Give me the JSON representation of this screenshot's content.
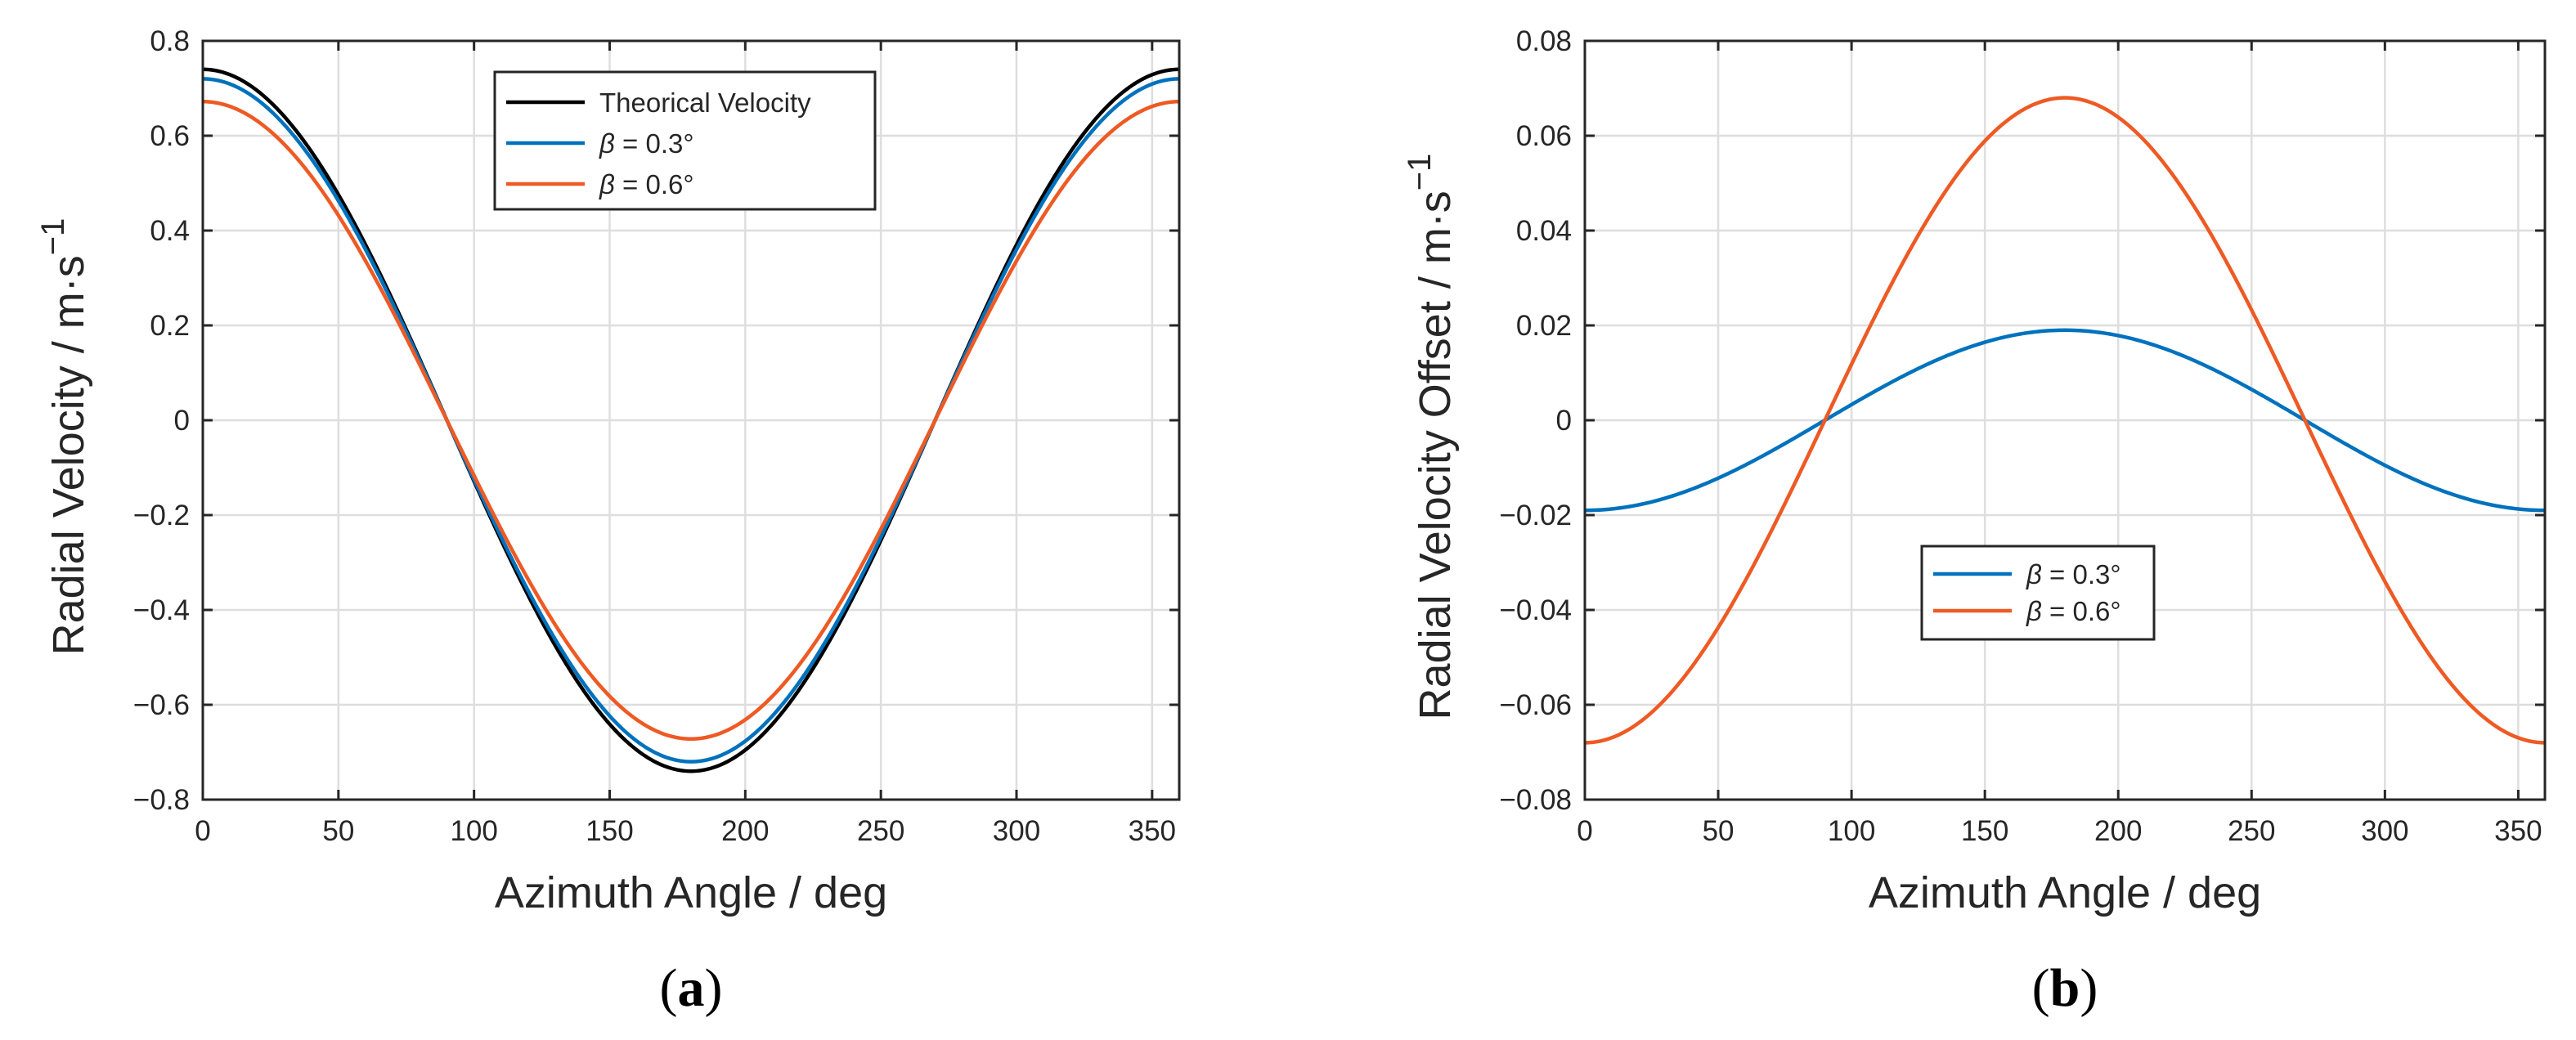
{
  "charts": [
    {
      "panel_label": "(a)",
      "panel_letter": "a",
      "xlabel": "Azimuth Angle / deg",
      "ylabel": "Radial Velocity / m·s",
      "ylabel_superscript": "−1",
      "legend_position": "top-center"
    },
    {
      "panel_label": "(b)",
      "panel_letter": "b",
      "xlabel": "Azimuth Angle / deg",
      "ylabel": "Radial Velocity Offset / m·s",
      "ylabel_superscript": "−1",
      "legend_position": "center"
    }
  ],
  "chart_data": [
    {
      "type": "line",
      "title": "",
      "xlabel": "Azimuth Angle / deg",
      "ylabel": "Radial Velocity / m·s−1",
      "xlim": [
        0,
        360
      ],
      "ylim": [
        -0.8,
        0.8
      ],
      "xticks": [
        0,
        50,
        100,
        150,
        200,
        250,
        300,
        350
      ],
      "yticks": [
        -0.8,
        -0.6,
        -0.4,
        -0.2,
        0,
        0.2,
        0.4,
        0.6,
        0.8
      ],
      "ytick_labels": [
        "−0.8",
        "−0.6",
        "−0.4",
        "−0.2",
        "0",
        "0.2",
        "0.4",
        "0.6",
        "0.8"
      ],
      "grid": true,
      "x": [
        0,
        20,
        40,
        60,
        80,
        90,
        100,
        120,
        140,
        160,
        180,
        200,
        220,
        240,
        260,
        270,
        280,
        300,
        320,
        340,
        360
      ],
      "series": [
        {
          "name": "Theorical Velocity",
          "legend_prefix": "",
          "legend_value": "Theorical Velocity",
          "color": "#000000",
          "amplitude": 0.74,
          "values": [
            0.74,
            0.695,
            0.567,
            0.37,
            0.128,
            0.0,
            -0.128,
            -0.37,
            -0.567,
            -0.695,
            -0.74,
            -0.695,
            -0.567,
            -0.37,
            -0.128,
            0.0,
            0.128,
            0.37,
            0.567,
            0.695,
            0.74
          ]
        },
        {
          "name": "β = 0.3°",
          "legend_prefix": "β",
          "legend_value": " = 0.3°",
          "color": "#0072BD",
          "amplitude": 0.72,
          "values": [
            0.72,
            0.677,
            0.552,
            0.36,
            0.125,
            0.0,
            -0.125,
            -0.36,
            -0.552,
            -0.677,
            -0.72,
            -0.677,
            -0.552,
            -0.36,
            -0.125,
            0.0,
            0.125,
            0.36,
            0.552,
            0.677,
            0.72
          ]
        },
        {
          "name": "β = 0.6°",
          "legend_prefix": "β",
          "legend_value": " = 0.6°",
          "color": "#EE5A24",
          "amplitude": 0.672,
          "values": [
            0.672,
            0.631,
            0.515,
            0.336,
            0.117,
            0.0,
            -0.117,
            -0.336,
            -0.515,
            -0.631,
            -0.672,
            -0.631,
            -0.515,
            -0.336,
            -0.117,
            0.0,
            0.117,
            0.336,
            0.515,
            0.631,
            0.672
          ]
        }
      ]
    },
    {
      "type": "line",
      "title": "",
      "xlabel": "Azimuth Angle / deg",
      "ylabel": "Radial Velocity Offset / m·s−1",
      "xlim": [
        0,
        360
      ],
      "ylim": [
        -0.08,
        0.08
      ],
      "xticks": [
        0,
        50,
        100,
        150,
        200,
        250,
        300,
        350
      ],
      "yticks": [
        -0.08,
        -0.06,
        -0.04,
        -0.02,
        0,
        0.02,
        0.04,
        0.06,
        0.08
      ],
      "ytick_labels": [
        "−0.08",
        "−0.06",
        "−0.04",
        "−0.02",
        "0",
        "0.02",
        "0.04",
        "0.06",
        "0.08"
      ],
      "grid": true,
      "x": [
        0,
        20,
        40,
        60,
        80,
        90,
        100,
        120,
        140,
        160,
        180,
        200,
        220,
        240,
        260,
        270,
        280,
        300,
        320,
        340,
        360
      ],
      "series": [
        {
          "name": "β = 0.3°",
          "legend_prefix": "β",
          "legend_value": " = 0.3°",
          "color": "#0072BD",
          "amplitude": 0.019,
          "values": [
            -0.019,
            -0.0179,
            -0.0146,
            -0.0095,
            -0.0033,
            0.0,
            0.0033,
            0.0095,
            0.0146,
            0.0179,
            0.019,
            0.0179,
            0.0146,
            0.0095,
            0.0033,
            0.0,
            -0.0033,
            -0.0095,
            -0.0146,
            -0.0179,
            -0.019
          ]
        },
        {
          "name": "β = 0.6°",
          "legend_prefix": "β",
          "legend_value": " = 0.6°",
          "color": "#EE5A24",
          "amplitude": 0.068,
          "values": [
            -0.068,
            -0.0639,
            -0.0521,
            -0.034,
            -0.0118,
            0.0,
            0.0118,
            0.034,
            0.0521,
            0.0639,
            0.068,
            0.0639,
            0.0521,
            0.034,
            0.0118,
            0.0,
            -0.0118,
            -0.034,
            -0.0521,
            -0.0639,
            -0.068
          ]
        }
      ]
    }
  ]
}
